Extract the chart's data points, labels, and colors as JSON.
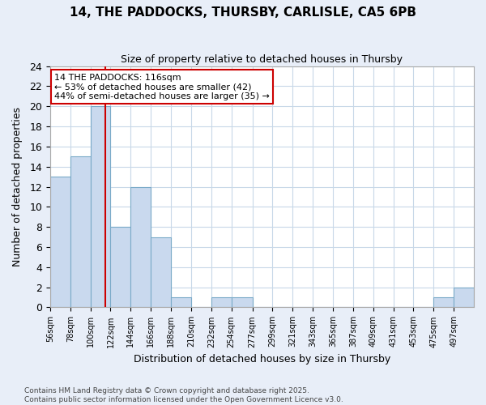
{
  "title": "14, THE PADDOCKS, THURSBY, CARLISLE, CA5 6PB",
  "subtitle": "Size of property relative to detached houses in Thursby",
  "xlabel": "Distribution of detached houses by size in Thursby",
  "ylabel": "Number of detached properties",
  "bin_edges": [
    56,
    78,
    100,
    122,
    144,
    166,
    188,
    210,
    232,
    254,
    277,
    299,
    321,
    343,
    365,
    387,
    409,
    431,
    453,
    475,
    497,
    519
  ],
  "bin_labels": [
    "56sqm",
    "78sqm",
    "100sqm",
    "122sqm",
    "144sqm",
    "166sqm",
    "188sqm",
    "210sqm",
    "232sqm",
    "254sqm",
    "277sqm",
    "299sqm",
    "321sqm",
    "343sqm",
    "365sqm",
    "387sqm",
    "409sqm",
    "431sqm",
    "453sqm",
    "475sqm",
    "497sqm"
  ],
  "counts": [
    13,
    15,
    20,
    8,
    12,
    7,
    1,
    0,
    1,
    1,
    0,
    0,
    0,
    0,
    0,
    0,
    0,
    0,
    0,
    1,
    2
  ],
  "bar_color": "#c9d9ee",
  "bar_edge_color": "#7aaac8",
  "grid_color": "#c8d8e8",
  "plot_bg_color": "#ffffff",
  "figure_bg_color": "#e8eef8",
  "red_line_x": 116,
  "annotation_title": "14 THE PADDOCKS: 116sqm",
  "annotation_line1": "← 53% of detached houses are smaller (42)",
  "annotation_line2": "44% of semi-detached houses are larger (35) →",
  "annotation_box_color": "#ffffff",
  "annotation_border_color": "#cc0000",
  "footer_line1": "Contains HM Land Registry data © Crown copyright and database right 2025.",
  "footer_line2": "Contains public sector information licensed under the Open Government Licence v3.0.",
  "ylim": [
    0,
    24
  ],
  "yticks": [
    0,
    2,
    4,
    6,
    8,
    10,
    12,
    14,
    16,
    18,
    20,
    22,
    24
  ]
}
